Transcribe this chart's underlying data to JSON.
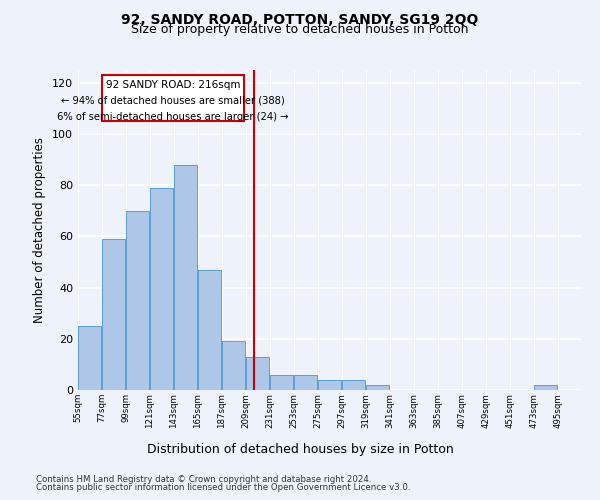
{
  "title_line1": "92, SANDY ROAD, POTTON, SANDY, SG19 2QQ",
  "title_line2": "Size of property relative to detached houses in Potton",
  "xlabel": "Distribution of detached houses by size in Potton",
  "ylabel": "Number of detached properties",
  "footer_line1": "Contains HM Land Registry data © Crown copyright and database right 2024.",
  "footer_line2": "Contains public sector information licensed under the Open Government Licence v3.0.",
  "annotation_title": "92 SANDY ROAD: 216sqm",
  "annotation_line2": "← 94% of detached houses are smaller (388)",
  "annotation_line3": "6% of semi-detached houses are larger (24) →",
  "bar_color": "#aec6e8",
  "bar_edge_color": "#5a9fd4",
  "vline_color": "#cc0000",
  "vline_x": 216,
  "bin_size": 22,
  "categories": [
    55,
    77,
    99,
    121,
    143,
    165,
    187,
    209,
    231,
    253,
    275,
    297,
    319,
    341,
    363,
    385,
    407,
    429,
    451,
    473
  ],
  "values": [
    25,
    59,
    70,
    79,
    88,
    47,
    19,
    13,
    6,
    6,
    4,
    4,
    2,
    0,
    0,
    0,
    0,
    0,
    0,
    2
  ],
  "ylim": [
    0,
    125
  ],
  "yticks": [
    0,
    20,
    40,
    60,
    80,
    100,
    120
  ],
  "tick_labels": [
    "55sqm",
    "77sqm",
    "99sqm",
    "121sqm",
    "143sqm",
    "165sqm",
    "187sqm",
    "209sqm",
    "231sqm",
    "253sqm",
    "275sqm",
    "297sqm",
    "319sqm",
    "341sqm",
    "363sqm",
    "385sqm",
    "407sqm",
    "429sqm",
    "451sqm",
    "473sqm",
    "495sqm"
  ],
  "bg_color": "#eef2fa",
  "plot_bg_color": "#eef2fa",
  "grid_color": "#ffffff",
  "annotation_box_color": "#ffffff",
  "annotation_box_edge": "#cc0000"
}
